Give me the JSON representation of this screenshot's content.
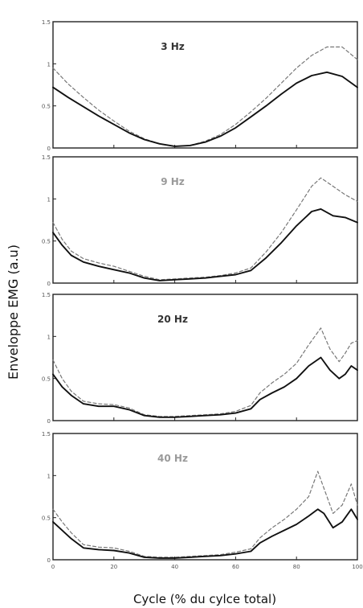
{
  "chart_data": {
    "type": "line",
    "xlabel": "Cycle (% du cylce total)",
    "ylabel": "Enveloppe EMG (a.u)",
    "xlim": [
      0,
      100
    ],
    "ylim": [
      0,
      1.5
    ],
    "xticks": [
      "0",
      "20",
      "40",
      "60",
      "80",
      "100"
    ],
    "yticks": [
      "0",
      "0.5",
      "1",
      "1.5"
    ],
    "colors": {
      "solid": "#111111",
      "dashed": "#777777",
      "frame": "#222222"
    },
    "panels": [
      {
        "label": "3 Hz",
        "label_color": "#333333",
        "series": [
          {
            "style": "solid",
            "x": [
              0,
              5,
              10,
              15,
              20,
              25,
              30,
              35,
              40,
              45,
              50,
              55,
              60,
              65,
              70,
              75,
              80,
              85,
              90,
              95,
              100
            ],
            "y": [
              0.72,
              0.6,
              0.49,
              0.38,
              0.28,
              0.18,
              0.1,
              0.05,
              0.02,
              0.03,
              0.07,
              0.14,
              0.24,
              0.37,
              0.5,
              0.64,
              0.77,
              0.86,
              0.9,
              0.85,
              0.72
            ]
          },
          {
            "style": "dashed",
            "x": [
              0,
              5,
              10,
              15,
              20,
              25,
              30,
              35,
              40,
              45,
              50,
              55,
              60,
              65,
              70,
              75,
              80,
              85,
              90,
              95,
              100
            ],
            "y": [
              0.95,
              0.76,
              0.6,
              0.45,
              0.32,
              0.2,
              0.11,
              0.05,
              0.02,
              0.03,
              0.08,
              0.16,
              0.28,
              0.43,
              0.59,
              0.77,
              0.95,
              1.1,
              1.2,
              1.2,
              1.05
            ]
          }
        ]
      },
      {
        "label": "9 Hz",
        "label_color": "#9a9a9a",
        "series": [
          {
            "style": "solid",
            "x": [
              0,
              3,
              6,
              10,
              15,
              20,
              25,
              30,
              35,
              40,
              45,
              50,
              55,
              60,
              65,
              70,
              75,
              80,
              85,
              88,
              92,
              96,
              100
            ],
            "y": [
              0.6,
              0.45,
              0.33,
              0.25,
              0.2,
              0.16,
              0.12,
              0.06,
              0.03,
              0.04,
              0.05,
              0.06,
              0.08,
              0.1,
              0.15,
              0.3,
              0.48,
              0.68,
              0.85,
              0.88,
              0.8,
              0.78,
              0.72
            ]
          },
          {
            "style": "dashed",
            "x": [
              0,
              3,
              6,
              10,
              15,
              20,
              25,
              30,
              35,
              40,
              45,
              50,
              55,
              60,
              65,
              70,
              75,
              80,
              85,
              88,
              92,
              96,
              100
            ],
            "y": [
              0.72,
              0.52,
              0.38,
              0.29,
              0.24,
              0.2,
              0.14,
              0.08,
              0.04,
              0.05,
              0.06,
              0.07,
              0.09,
              0.12,
              0.18,
              0.37,
              0.6,
              0.87,
              1.15,
              1.25,
              1.15,
              1.05,
              0.97
            ]
          }
        ]
      },
      {
        "label": "20 Hz",
        "label_color": "#333333",
        "series": [
          {
            "style": "solid",
            "x": [
              0,
              3,
              6,
              10,
              15,
              20,
              25,
              30,
              35,
              40,
              45,
              50,
              55,
              60,
              65,
              68,
              72,
              76,
              80,
              84,
              88,
              91,
              94,
              96,
              98,
              100
            ],
            "y": [
              0.55,
              0.4,
              0.3,
              0.2,
              0.17,
              0.17,
              0.13,
              0.06,
              0.04,
              0.04,
              0.05,
              0.06,
              0.07,
              0.09,
              0.14,
              0.25,
              0.33,
              0.4,
              0.5,
              0.65,
              0.75,
              0.6,
              0.5,
              0.55,
              0.65,
              0.6
            ]
          },
          {
            "style": "dashed",
            "x": [
              0,
              3,
              6,
              10,
              15,
              20,
              25,
              30,
              35,
              40,
              45,
              50,
              55,
              60,
              65,
              68,
              72,
              76,
              80,
              84,
              88,
              91,
              94,
              96,
              98,
              100
            ],
            "y": [
              0.72,
              0.5,
              0.35,
              0.23,
              0.2,
              0.19,
              0.15,
              0.07,
              0.05,
              0.05,
              0.06,
              0.07,
              0.08,
              0.11,
              0.18,
              0.33,
              0.45,
              0.55,
              0.68,
              0.9,
              1.1,
              0.85,
              0.7,
              0.8,
              0.92,
              0.95
            ]
          }
        ]
      },
      {
        "label": "40 Hz",
        "label_color": "#9a9a9a",
        "series": [
          {
            "style": "solid",
            "x": [
              0,
              3,
              6,
              10,
              15,
              20,
              25,
              30,
              35,
              40,
              45,
              50,
              55,
              60,
              65,
              68,
              72,
              76,
              80,
              84,
              87,
              89,
              92,
              95,
              98,
              100
            ],
            "y": [
              0.45,
              0.35,
              0.25,
              0.14,
              0.12,
              0.11,
              0.08,
              0.03,
              0.02,
              0.02,
              0.03,
              0.04,
              0.05,
              0.07,
              0.1,
              0.2,
              0.28,
              0.35,
              0.42,
              0.52,
              0.6,
              0.55,
              0.38,
              0.45,
              0.6,
              0.48
            ]
          },
          {
            "style": "dashed",
            "x": [
              0,
              3,
              6,
              10,
              15,
              20,
              25,
              30,
              35,
              40,
              45,
              50,
              55,
              60,
              65,
              68,
              72,
              76,
              80,
              84,
              87,
              89,
              92,
              95,
              98,
              100
            ],
            "y": [
              0.6,
              0.45,
              0.32,
              0.18,
              0.15,
              0.14,
              0.1,
              0.04,
              0.03,
              0.03,
              0.04,
              0.05,
              0.06,
              0.09,
              0.13,
              0.26,
              0.38,
              0.48,
              0.6,
              0.75,
              1.05,
              0.85,
              0.55,
              0.65,
              0.9,
              0.65
            ]
          }
        ]
      }
    ]
  }
}
